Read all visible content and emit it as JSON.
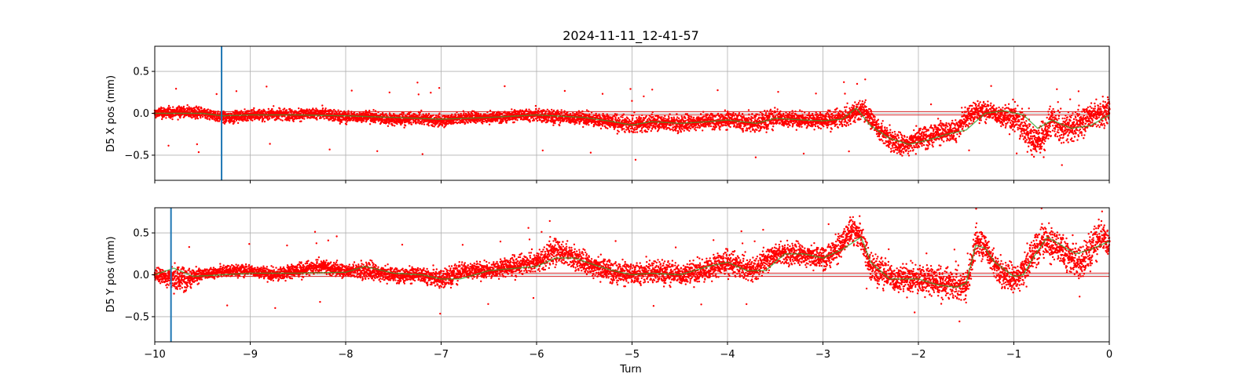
{
  "chart_data": {
    "type": "scatter",
    "title": "2024-11-11_12-41-57",
    "xlabel": "Turn",
    "xlim": [
      -10,
      0
    ],
    "x_ticks": [
      -10,
      -9,
      -8,
      -7,
      -6,
      -5,
      -4,
      -3,
      -2,
      -1,
      0
    ],
    "x_tick_labels": [
      "−10",
      "−9",
      "−8",
      "−7",
      "−6",
      "−5",
      "−4",
      "−3",
      "−2",
      "−1",
      "0"
    ],
    "grid": true,
    "colors": {
      "points": "#ff0000",
      "trend": "#2ca02c",
      "marker": "#1f77b4",
      "refline": "#d62728"
    },
    "panels": [
      {
        "ylabel": "D5 X pos (mm)",
        "ylim": [
          -0.8,
          0.8
        ],
        "y_ticks": [
          -0.5,
          0.0,
          0.5
        ],
        "y_tick_labels": [
          "−0.5",
          "0.0",
          "0.5"
        ],
        "marker_x": -9.3,
        "reference_y": [
          -0.02,
          0.02
        ],
        "series": [
          {
            "kind": "points",
            "x": [
              -10.0,
              -9.75,
              -9.5,
              -9.25,
              -9.0,
              -8.75,
              -8.5,
              -8.25,
              -8.0,
              -7.75,
              -7.5,
              -7.25,
              -7.0,
              -6.75,
              -6.5,
              -6.25,
              -6.0,
              -5.75,
              -5.5,
              -5.25,
              -5.0,
              -4.75,
              -4.5,
              -4.25,
              -4.0,
              -3.75,
              -3.5,
              -3.25,
              -3.0,
              -2.75,
              -2.6,
              -2.5,
              -2.4,
              -2.3,
              -2.2,
              -2.1,
              -2.0,
              -1.9,
              -1.8,
              -1.7,
              -1.6,
              -1.5,
              -1.4,
              -1.3,
              -1.2,
              -1.1,
              -1.0,
              -0.9,
              -0.8,
              -0.7,
              -0.6,
              -0.5,
              -0.4,
              -0.3,
              -0.2,
              -0.1,
              0.0
            ],
            "y": [
              0.0,
              0.02,
              0.0,
              -0.05,
              -0.02,
              -0.01,
              -0.02,
              0.0,
              -0.05,
              -0.04,
              -0.08,
              -0.06,
              -0.09,
              -0.05,
              -0.05,
              -0.03,
              -0.02,
              -0.05,
              -0.06,
              -0.1,
              -0.14,
              -0.1,
              -0.13,
              -0.09,
              -0.08,
              -0.12,
              -0.06,
              -0.08,
              -0.09,
              -0.05,
              0.06,
              -0.05,
              -0.22,
              -0.3,
              -0.38,
              -0.36,
              -0.3,
              -0.27,
              -0.22,
              -0.24,
              -0.2,
              -0.05,
              0.03,
              0.02,
              0.0,
              -0.05,
              -0.05,
              -0.15,
              -0.35,
              -0.3,
              -0.08,
              -0.2,
              -0.15,
              -0.12,
              -0.02,
              -0.02,
              0.05
            ],
            "spread": [
              0.06,
              0.06,
              0.06,
              0.06,
              0.06,
              0.06,
              0.06,
              0.06,
              0.06,
              0.06,
              0.06,
              0.06,
              0.06,
              0.06,
              0.06,
              0.06,
              0.07,
              0.07,
              0.07,
              0.07,
              0.09,
              0.08,
              0.09,
              0.08,
              0.09,
              0.1,
              0.1,
              0.08,
              0.08,
              0.1,
              0.1,
              0.1,
              0.12,
              0.12,
              0.12,
              0.12,
              0.12,
              0.12,
              0.12,
              0.12,
              0.12,
              0.12,
              0.1,
              0.1,
              0.1,
              0.12,
              0.15,
              0.18,
              0.15,
              0.15,
              0.15,
              0.15,
              0.15,
              0.15,
              0.15,
              0.15,
              0.15
            ]
          },
          {
            "kind": "trend",
            "x": [
              -10.0,
              -9.5,
              -9.3,
              -9.0,
              -8.5,
              -8.0,
              -7.5,
              -7.0,
              -6.5,
              -6.0,
              -5.5,
              -5.2,
              -5.0,
              -4.8,
              -4.5,
              -4.2,
              -4.0,
              -3.7,
              -3.5,
              -3.2,
              -3.0,
              -2.8,
              -2.65,
              -2.5,
              -2.3,
              -2.1,
              -1.9,
              -1.7,
              -1.5,
              -1.3,
              -1.1,
              -0.9,
              -0.75,
              -0.6,
              -0.4,
              -0.2,
              0.0
            ],
            "y": [
              0.0,
              0.0,
              -0.03,
              -0.02,
              -0.02,
              -0.03,
              -0.05,
              -0.07,
              -0.05,
              -0.02,
              -0.05,
              -0.1,
              -0.14,
              -0.1,
              -0.12,
              -0.1,
              -0.08,
              -0.12,
              -0.06,
              -0.08,
              -0.09,
              -0.07,
              0.06,
              -0.15,
              -0.3,
              -0.37,
              -0.32,
              -0.25,
              -0.2,
              0.0,
              0.03,
              -0.02,
              -0.18,
              -0.08,
              -0.18,
              -0.15,
              -0.02
            ]
          }
        ]
      },
      {
        "ylabel": "D5 Y pos (mm)",
        "ylim": [
          -0.8,
          0.8
        ],
        "y_ticks": [
          -0.5,
          0.0,
          0.5
        ],
        "y_tick_labels": [
          "−0.5",
          "0.0",
          "0.5"
        ],
        "marker_x": -9.83,
        "reference_y": [
          -0.02,
          0.02
        ],
        "series": [
          {
            "kind": "points",
            "x": [
              -10.0,
              -9.75,
              -9.5,
              -9.25,
              -9.0,
              -8.75,
              -8.5,
              -8.25,
              -8.0,
              -7.75,
              -7.5,
              -7.25,
              -7.0,
              -6.75,
              -6.5,
              -6.25,
              -6.0,
              -5.8,
              -5.6,
              -5.4,
              -5.2,
              -5.0,
              -4.75,
              -4.5,
              -4.25,
              -4.0,
              -3.75,
              -3.5,
              -3.25,
              -3.0,
              -2.8,
              -2.7,
              -2.6,
              -2.5,
              -2.25,
              -2.0,
              -1.75,
              -1.5,
              -1.4,
              -1.3,
              -1.2,
              -1.1,
              -1.0,
              -0.9,
              -0.8,
              -0.7,
              -0.6,
              -0.5,
              -0.4,
              -0.3,
              -0.2,
              -0.1,
              0.0
            ],
            "y": [
              0.0,
              -0.05,
              0.0,
              0.05,
              0.05,
              0.0,
              0.05,
              0.1,
              0.05,
              0.05,
              0.0,
              0.0,
              -0.05,
              0.05,
              0.05,
              0.1,
              0.15,
              0.3,
              0.2,
              0.1,
              0.05,
              0.0,
              0.05,
              0.0,
              0.05,
              0.15,
              0.05,
              0.25,
              0.25,
              0.2,
              0.35,
              0.55,
              0.45,
              0.1,
              -0.05,
              -0.05,
              -0.1,
              -0.15,
              0.4,
              0.35,
              0.1,
              0.0,
              -0.05,
              0.05,
              0.25,
              0.45,
              0.35,
              0.3,
              0.2,
              0.15,
              0.3,
              0.45,
              0.4
            ],
            "spread": [
              0.06,
              0.15,
              0.06,
              0.06,
              0.06,
              0.07,
              0.07,
              0.07,
              0.07,
              0.1,
              0.08,
              0.08,
              0.1,
              0.1,
              0.08,
              0.1,
              0.1,
              0.15,
              0.12,
              0.12,
              0.12,
              0.12,
              0.12,
              0.12,
              0.12,
              0.12,
              0.12,
              0.12,
              0.12,
              0.12,
              0.15,
              0.15,
              0.15,
              0.15,
              0.15,
              0.15,
              0.15,
              0.15,
              0.15,
              0.15,
              0.15,
              0.15,
              0.15,
              0.18,
              0.18,
              0.18,
              0.18,
              0.18,
              0.18,
              0.18,
              0.18,
              0.18,
              0.18
            ]
          },
          {
            "kind": "trend",
            "x": [
              -10.0,
              -9.8,
              -9.6,
              -9.3,
              -9.0,
              -8.5,
              -8.0,
              -7.8,
              -7.5,
              -7.2,
              -7.0,
              -6.8,
              -6.5,
              -6.2,
              -6.0,
              -5.8,
              -5.6,
              -5.4,
              -5.2,
              -5.0,
              -4.8,
              -4.5,
              -4.2,
              -4.0,
              -3.8,
              -3.6,
              -3.4,
              -3.2,
              -3.0,
              -2.8,
              -2.6,
              -2.5,
              -2.3,
              -2.0,
              -1.8,
              -1.6,
              -1.5,
              -1.4,
              -1.3,
              -1.2,
              -1.0,
              -0.9,
              -0.8,
              -0.65,
              -0.5,
              -0.35,
              -0.2,
              0.0
            ],
            "y": [
              0.0,
              0.08,
              -0.02,
              0.0,
              0.02,
              0.02,
              0.03,
              0.1,
              0.02,
              0.0,
              -0.05,
              -0.05,
              0.05,
              0.08,
              0.1,
              0.2,
              0.2,
              0.12,
              0.05,
              0.0,
              0.02,
              0.0,
              0.1,
              0.15,
              0.05,
              0.05,
              0.25,
              0.25,
              0.2,
              0.3,
              0.45,
              0.15,
              -0.05,
              -0.05,
              -0.12,
              -0.15,
              -0.1,
              0.35,
              0.32,
              0.15,
              -0.02,
              0.0,
              0.2,
              0.45,
              0.35,
              0.25,
              0.3,
              0.4
            ]
          }
        ]
      }
    ]
  }
}
